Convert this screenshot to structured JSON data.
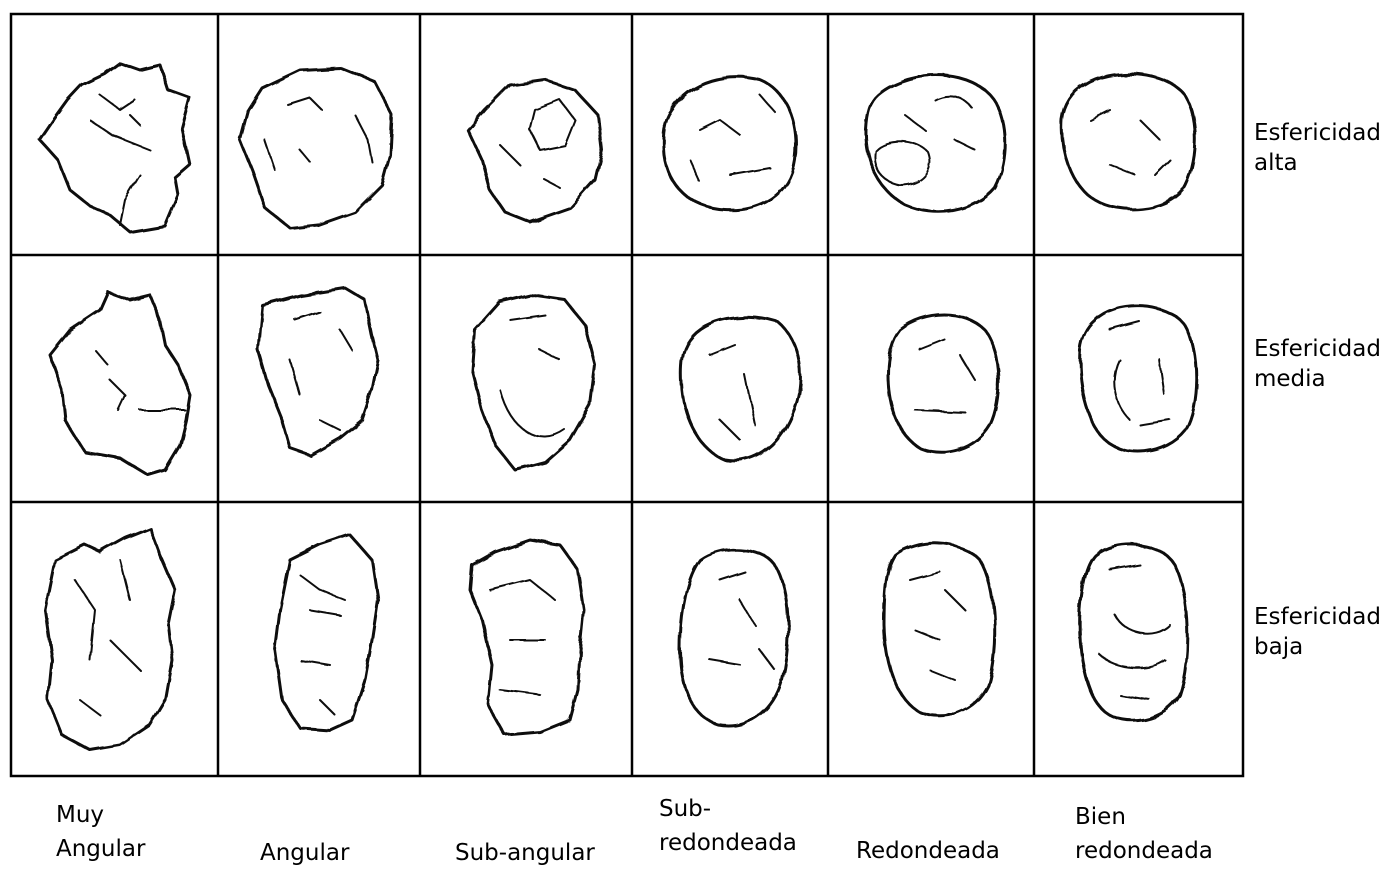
{
  "rows": [
    {
      "line1": "Esfericidad",
      "line2": "alta"
    },
    {
      "line1": "Esfericidad",
      "line2": "media"
    },
    {
      "line1": "Esfericidad",
      "line2": "baja"
    }
  ],
  "columns": [
    {
      "line1": "Muy",
      "line2": "Angular"
    },
    {
      "line1": "Angular",
      "line2": ""
    },
    {
      "line1": "Sub-angular",
      "line2": ""
    },
    {
      "line1": "Sub-",
      "line2": "redondeada"
    },
    {
      "line1": "Redondeada",
      "line2": ""
    },
    {
      "line1": "Bien",
      "line2": "redondeada"
    }
  ]
}
